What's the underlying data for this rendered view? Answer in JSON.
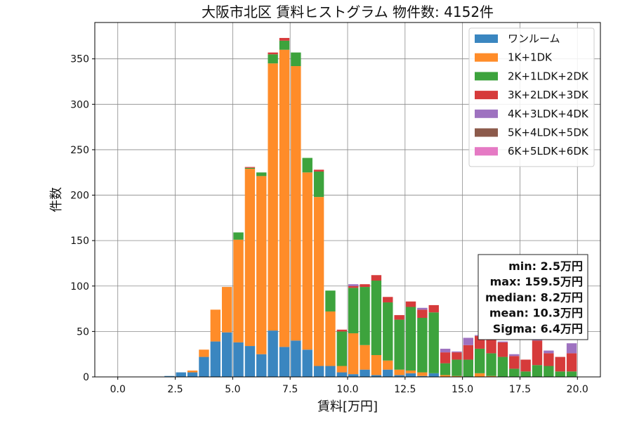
{
  "chart_data": {
    "type": "bar",
    "stacked": true,
    "title": "大阪市北区 賃料ヒストグラム 物件数: 4152件",
    "xlabel": "賃料[万円]",
    "ylabel": "件数",
    "xlim": [
      -1.0,
      21.0
    ],
    "ylim": [
      0,
      390
    ],
    "xticks": [
      0.0,
      2.5,
      5.0,
      7.5,
      10.0,
      12.5,
      15.0,
      17.5,
      20.0
    ],
    "xtick_labels": [
      "0.0",
      "2.5",
      "5.0",
      "7.5",
      "10.0",
      "12.5",
      "15.0",
      "17.5",
      "20.0"
    ],
    "yticks": [
      0,
      50,
      100,
      150,
      200,
      250,
      300,
      350
    ],
    "ytick_labels": [
      "0",
      "50",
      "100",
      "150",
      "200",
      "250",
      "300",
      "350"
    ],
    "grid": true,
    "legend_position": "top-right",
    "bin_width": 0.5,
    "x": [
      0.0,
      0.5,
      1.0,
      1.5,
      2.0,
      2.5,
      3.0,
      3.5,
      4.0,
      4.5,
      5.0,
      5.5,
      6.0,
      6.5,
      7.0,
      7.5,
      8.0,
      8.5,
      9.0,
      9.5,
      10.0,
      10.5,
      11.0,
      11.5,
      12.0,
      12.5,
      13.0,
      13.5,
      14.0,
      14.5,
      15.0,
      15.5,
      16.0,
      16.5,
      17.0,
      17.5,
      18.0,
      18.5,
      19.0,
      19.5
    ],
    "series": [
      {
        "name": "ワンルーム",
        "color": "#3a86c0",
        "values": [
          0,
          0,
          0,
          0,
          1,
          5,
          5,
          22,
          39,
          49,
          38,
          34,
          25,
          51,
          33,
          40,
          30,
          12,
          12,
          5,
          3,
          8,
          2,
          8,
          2,
          4,
          1,
          4,
          0,
          0,
          0,
          0,
          0,
          0,
          0,
          0,
          0,
          0,
          0,
          0
        ]
      },
      {
        "name": "1K+1DK",
        "color": "#ff8c29",
        "values": [
          0,
          0,
          0,
          0,
          0,
          0,
          2,
          8,
          35,
          50,
          113,
          195,
          196,
          294,
          327,
          302,
          195,
          186,
          60,
          7,
          45,
          27,
          22,
          10,
          6,
          3,
          4,
          0,
          2,
          1,
          0,
          4,
          1,
          0,
          0,
          0,
          0,
          0,
          0,
          0
        ]
      },
      {
        "name": "2K+1LDK+2DK",
        "color": "#3da33d",
        "values": [
          0,
          0,
          0,
          0,
          0,
          0,
          0,
          0,
          0,
          0,
          8,
          1,
          4,
          10,
          10,
          15,
          16,
          28,
          23,
          38,
          50,
          64,
          82,
          64,
          55,
          70,
          60,
          67,
          13,
          18,
          19,
          27,
          25,
          22,
          9,
          6,
          13,
          12,
          6,
          6
        ]
      },
      {
        "name": "3K+2LDK+3DK",
        "color": "#d63b3b",
        "values": [
          0,
          0,
          0,
          0,
          0,
          0,
          0,
          0,
          0,
          0,
          0,
          1,
          0,
          2,
          3,
          0,
          0,
          2,
          0,
          2,
          2,
          3,
          6,
          6,
          5,
          6,
          9,
          8,
          12,
          8,
          16,
          14,
          16,
          16,
          14,
          13,
          27,
          14,
          16,
          20
        ]
      },
      {
        "name": "4K+3LDK+4DK",
        "color": "#9e72c0",
        "values": [
          0,
          0,
          0,
          0,
          0,
          0,
          0,
          0,
          0,
          0,
          0,
          0,
          0,
          0,
          0,
          0,
          0,
          0,
          0,
          0,
          2,
          0,
          0,
          0,
          0,
          0,
          2,
          0,
          4,
          1,
          8,
          1,
          2,
          1,
          2,
          0,
          2,
          3,
          0,
          11
        ]
      },
      {
        "name": "5K+4LDK+5DK",
        "color": "#8c5a4b",
        "values": [
          0,
          0,
          0,
          0,
          0,
          0,
          0,
          0,
          0,
          0,
          0,
          0,
          0,
          0,
          0,
          0,
          0,
          0,
          0,
          0,
          0,
          0,
          0,
          0,
          0,
          0,
          0,
          0,
          0,
          0,
          0,
          0,
          0,
          0,
          0,
          0,
          0,
          0,
          0,
          0
        ]
      },
      {
        "name": "6K+5LDK+6DK",
        "color": "#e57ac4",
        "values": [
          0,
          0,
          0,
          0,
          0,
          0,
          0,
          0,
          0,
          0,
          0,
          0,
          0,
          0,
          0,
          0,
          0,
          0,
          0,
          0,
          0,
          0,
          0,
          0,
          0,
          0,
          0,
          0,
          0,
          0,
          0,
          0,
          0,
          0,
          0,
          0,
          0,
          0,
          0,
          0
        ]
      }
    ],
    "annotation": [
      "min: 2.5万円",
      "max: 159.5万円",
      "median: 8.2万円",
      "mean: 10.3万円",
      "Sigma: 6.4万円"
    ]
  }
}
